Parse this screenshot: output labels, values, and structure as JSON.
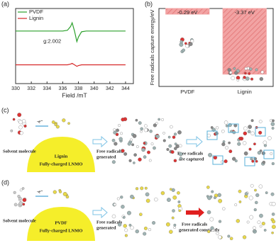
{
  "chart_data": [
    {
      "type": "line",
      "panel_label": "(a)",
      "xlabel": "Field /mT",
      "x": [
        330,
        331,
        332,
        333,
        334,
        335,
        336,
        336.6,
        337,
        337.2,
        337.5,
        337.8,
        338,
        338.4,
        339,
        340,
        341,
        342,
        343,
        344
      ],
      "xlim": [
        330,
        345
      ],
      "xticks": [
        330,
        332,
        334,
        336,
        338,
        340,
        342,
        344
      ],
      "ylim": [
        0,
        10
      ],
      "series": [
        {
          "name": "PVDF",
          "color": "#2ca02c",
          "values": [
            7,
            7,
            7,
            7,
            7,
            7,
            7,
            7.1,
            7.6,
            8.1,
            7,
            5.6,
            6.2,
            6.9,
            7,
            7,
            7,
            7,
            7,
            7
          ]
        },
        {
          "name": "Lignin",
          "color": "#d62728",
          "values": [
            2.5,
            2.5,
            2.5,
            2.5,
            2.5,
            2.5,
            2.5,
            2.5,
            2.6,
            2.7,
            2.5,
            2.3,
            2.4,
            2.5,
            2.5,
            2.5,
            2.5,
            2.5,
            2.5,
            2.5
          ]
        }
      ],
      "annotation": "g:2.002",
      "legend": "upper left"
    },
    {
      "type": "bar",
      "panel_label": "(b)",
      "ylabel": "Free radicals capture energy/eV",
      "categories": [
        "PVDF",
        "Lignin"
      ],
      "values": [
        -0.29,
        -3.37
      ],
      "value_labels": [
        "-0.29 eV",
        "-3.37 eV"
      ],
      "color": "#f2a3a3",
      "ylim": [
        -4,
        0
      ]
    }
  ],
  "diagram_c": {
    "panel_label": "(c)",
    "solvent": "Solvent molecule",
    "electron": "-e⁻",
    "binder": "Lignin",
    "cathode": "Fully-charged LNMO",
    "step1": [
      "Free radicals",
      "generated"
    ],
    "step2": [
      "Free radicals",
      "are captured"
    ]
  },
  "diagram_d": {
    "panel_label": "(d)",
    "solvent": "Solvent molecule",
    "electron": "-e⁻",
    "binder": "PVDF",
    "cathode": "Fully-charged LNMO",
    "step1": [
      "Free radicals",
      "generated"
    ],
    "step2": [
      "Free radicals",
      "generated constantly"
    ]
  }
}
